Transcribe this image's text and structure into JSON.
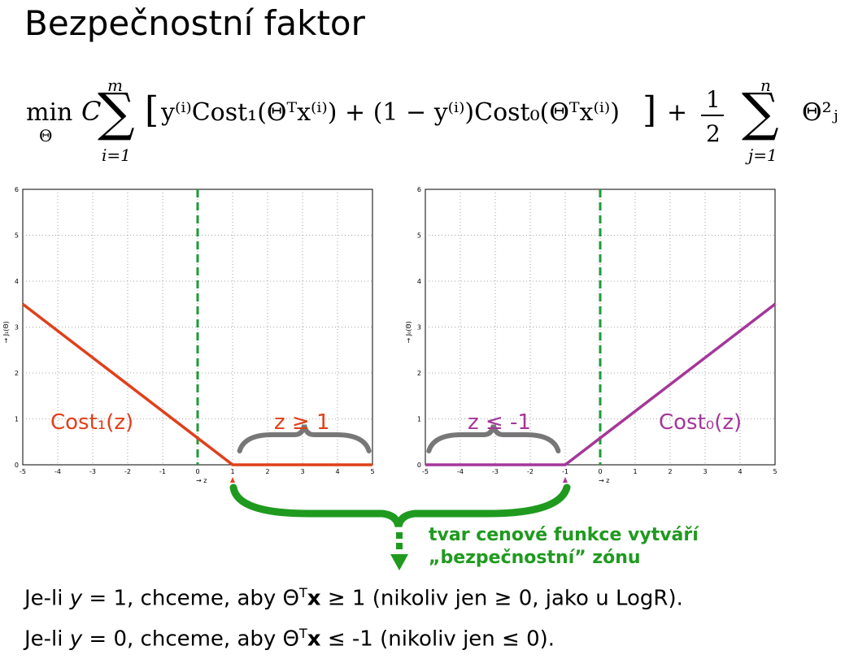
{
  "title": "Bezpečnostní faktor",
  "formula": {
    "min": "min",
    "min_sub": "Θ",
    "C": "C",
    "sum_top_1": "m",
    "sum_bot_1": "i=1",
    "body": "y⁽ⁱ⁾Cost₁(Θᵀx⁽ⁱ⁾) + (1 − y⁽ⁱ⁾)Cost₀(Θᵀx⁽ⁱ⁾)",
    "plus": "+",
    "frac_num": "1",
    "frac_den": "2",
    "sum_top_2": "n",
    "sum_bot_2": "j=1",
    "theta_sq": "Θ²ⱼ"
  },
  "chart_data": [
    {
      "type": "line",
      "xlabel": "→ z",
      "ylabel": "→ J₁(Θ)",
      "xlim": [
        -5,
        5
      ],
      "ylim": [
        0,
        6
      ],
      "xticks": [
        "-5",
        "-4",
        "-3",
        "-2",
        "-1",
        "0",
        "1",
        "2",
        "3",
        "4",
        "5"
      ],
      "yticks": [
        "0",
        "1",
        "2",
        "3",
        "4",
        "5",
        "6"
      ],
      "grid": true,
      "series": [
        {
          "x": [
            -5,
            1,
            5
          ],
          "y": [
            3.5,
            0,
            0
          ],
          "color": "#e0401a"
        }
      ],
      "vline": {
        "x": 0,
        "color": "#1f9a3a",
        "style": "dashed"
      },
      "annotations": [
        {
          "text": "Cost₁(z)",
          "color": "#e0401a"
        },
        {
          "text": "z ≥ 1",
          "color": "#e0401a"
        }
      ],
      "marker": {
        "x": 1,
        "color": "#e0401a"
      }
    },
    {
      "type": "line",
      "xlabel": "→ z",
      "ylabel": "→ J₀(Θ)",
      "xlim": [
        -5,
        5
      ],
      "ylim": [
        0,
        6
      ],
      "xticks": [
        "-5",
        "-4",
        "-3",
        "-2",
        "-1",
        "0",
        "1",
        "2",
        "3",
        "4",
        "5"
      ],
      "yticks": [
        "0",
        "1",
        "2",
        "3",
        "4",
        "5",
        "6"
      ],
      "grid": true,
      "series": [
        {
          "x": [
            -5,
            -1,
            5
          ],
          "y": [
            0,
            0,
            3.5
          ],
          "color": "#a4379a"
        }
      ],
      "vline": {
        "x": 0,
        "color": "#1f9a3a",
        "style": "dashed"
      },
      "annotations": [
        {
          "text": "z ≤ -1",
          "color": "#a4379a"
        },
        {
          "text": "Cost₀(z)",
          "color": "#a4379a"
        }
      ],
      "marker": {
        "x": -1,
        "color": "#a4379a"
      }
    }
  ],
  "note": {
    "line1": "tvar cenové funkce vytváří",
    "line2": "„bezpečnostní” zónu"
  },
  "bottom": {
    "line1": {
      "a": "Je-li ",
      "y": "y",
      "b": " = 1, chceme, aby Θ",
      "sup": "T",
      "x": "x",
      "c": " ≥ 1 (nikoliv jen ≥ 0, jako u LogR)."
    },
    "line2": {
      "a": "Je-li ",
      "y": "y",
      "b": " = 0, chceme, aby Θ",
      "sup": "T",
      "x": "x",
      "c": " ≤ -1 (nikoliv jen ≤ 0)."
    }
  },
  "colors": {
    "red": "#e0401a",
    "purple": "#a4379a",
    "green": "#1f9a1f",
    "gray_brace": "#777777"
  }
}
